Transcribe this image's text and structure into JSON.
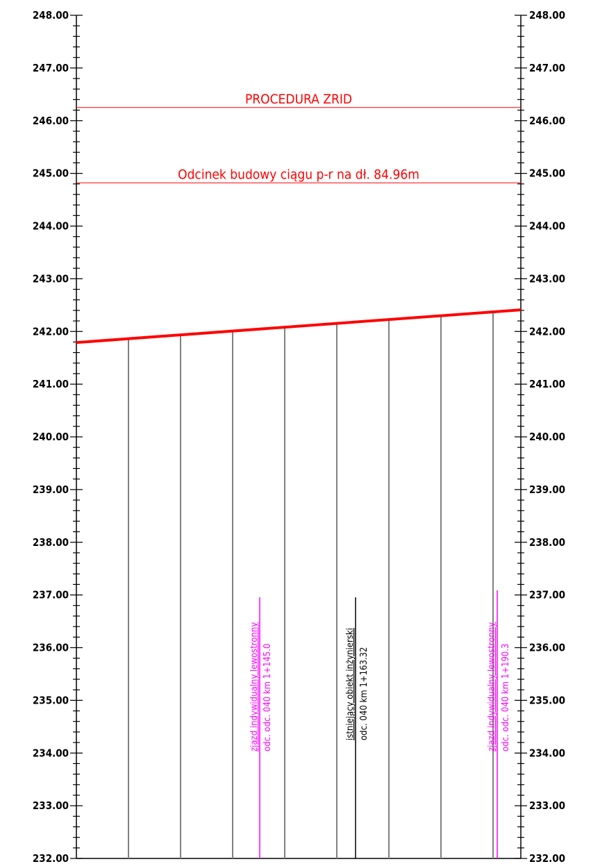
{
  "axis": {
    "min": 232.0,
    "max": 248.0,
    "major_step": 1.0,
    "minor_step": 0.2,
    "labels": [
      "248.00",
      "247.00",
      "246.00",
      "245.00",
      "244.00",
      "243.00",
      "242.00",
      "241.00",
      "240.00",
      "239.00",
      "238.00",
      "237.00",
      "236.00",
      "235.00",
      "234.00",
      "233.00",
      "232.00"
    ]
  },
  "horizontal_lines": [
    {
      "name": "procedura-zrid-line",
      "elevation": 246.25,
      "label": "PROCEDURA ZRID",
      "color": "#ff0000"
    },
    {
      "name": "odcinek-budowy-line",
      "elevation": 244.82,
      "label": "Odcinek budowy ciągu p-r na dł. 84.96m",
      "color": "#ff0000"
    }
  ],
  "grade_line": {
    "start_elevation": 241.79,
    "end_elevation": 242.41,
    "color": "#ff0000"
  },
  "station_lines_count": 8,
  "markers": [
    {
      "name": "zjazd-145",
      "line1": "zjazd indywidualny lewostronny",
      "line2": "odc. odc. 040 km 1+145.0",
      "color": "#ff00ff"
    },
    {
      "name": "obiekt-163",
      "line1": "istniejący obiekt inżynierski",
      "line2": "odc. 040 km 1+163.32",
      "color": "#000000"
    },
    {
      "name": "zjazd-190",
      "line1": "zjazd indywidualny lewostronny",
      "line2": "odc. odc. 040 km 1+190.3",
      "color": "#ff00ff"
    }
  ]
}
